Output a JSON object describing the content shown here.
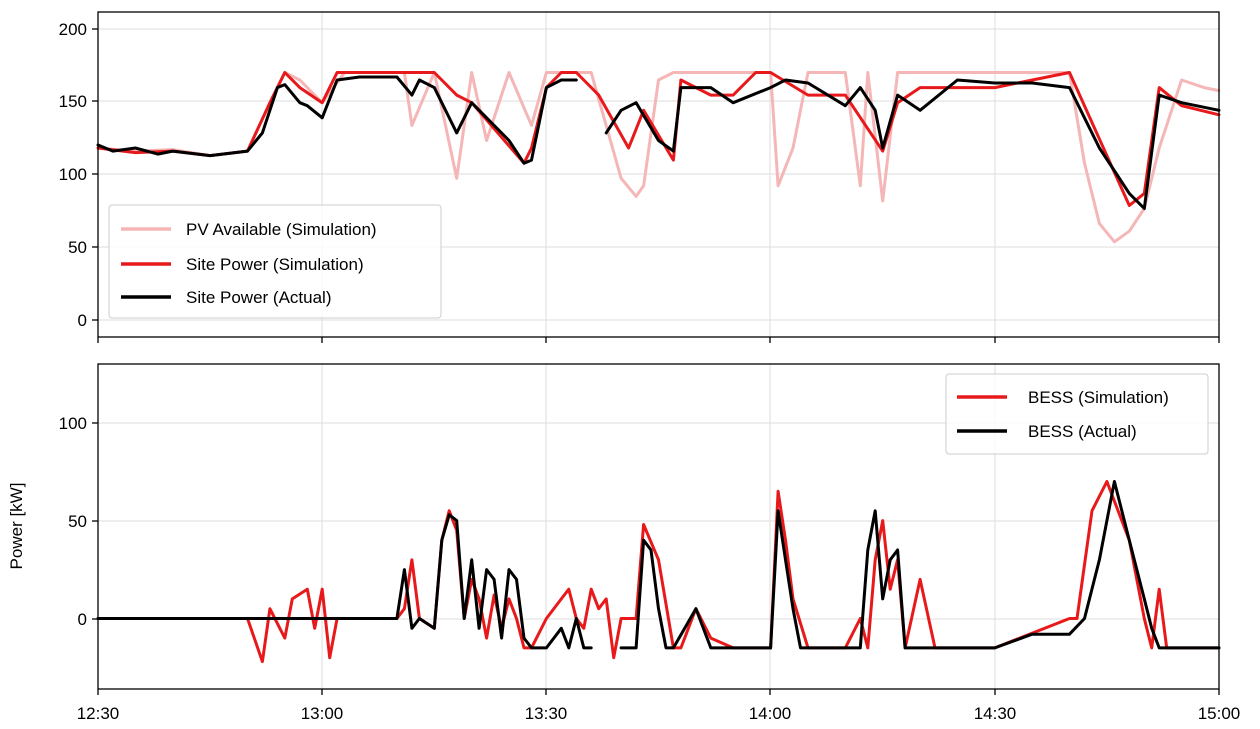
{
  "chart_data": [
    {
      "type": "line",
      "panel": "top",
      "xlabel": "",
      "ylabel": "",
      "xlim": [
        "12:30",
        "15:00"
      ],
      "ylim": [
        -5,
        210
      ],
      "xticks": [
        "12:30",
        "13:00",
        "13:30",
        "14:00",
        "14:30",
        "15:00"
      ],
      "xtick_labels_shown": false,
      "yticks": [
        0,
        50,
        100,
        150,
        200
      ],
      "ytick_labels": [
        "0",
        "50",
        "100",
        "150",
        "200"
      ],
      "grid": true,
      "legend": "bottom-left",
      "series": [
        {
          "name": "PV Available (Simulation)",
          "color": "#f4b6b6",
          "x": [
            "12:30",
            "12:35",
            "12:40",
            "12:45",
            "12:50",
            "12:53",
            "12:55",
            "12:57",
            "13:00",
            "13:03",
            "13:07",
            "13:11",
            "13:12",
            "13:15",
            "13:18",
            "13:20",
            "13:22",
            "13:25",
            "13:28",
            "13:30",
            "13:33",
            "13:36",
            "13:40",
            "13:42",
            "13:43",
            "13:45",
            "13:47",
            "13:50",
            "13:55",
            "14:00",
            "14:01",
            "14:03",
            "14:05",
            "14:10",
            "14:12",
            "14:13",
            "14:15",
            "14:17",
            "14:20",
            "14:25",
            "14:30",
            "14:35",
            "14:40",
            "14:42",
            "14:44",
            "14:46",
            "14:48",
            "14:50",
            "14:52",
            "14:55",
            "14:58",
            "15:00"
          ],
          "values": [
            120,
            118,
            119,
            115,
            118,
            150,
            170,
            165,
            150,
            170,
            170,
            170,
            135,
            170,
            100,
            170,
            125,
            170,
            135,
            170,
            170,
            170,
            100,
            88,
            95,
            165,
            170,
            170,
            170,
            170,
            95,
            120,
            170,
            170,
            95,
            170,
            85,
            170,
            170,
            170,
            170,
            170,
            170,
            110,
            70,
            58,
            65,
            80,
            120,
            165,
            160,
            158
          ]
        },
        {
          "name": "Site Power (Simulation)",
          "color": "#e8191b",
          "x": [
            "12:30",
            "12:35",
            "12:40",
            "12:45",
            "12:50",
            "12:53",
            "12:55",
            "12:57",
            "13:00",
            "13:02",
            "13:05",
            "13:10",
            "13:13",
            "13:15",
            "13:18",
            "13:20",
            "13:27",
            "13:28",
            "13:30",
            "13:32",
            "13:34",
            "13:37",
            "13:41",
            "13:43",
            "13:47",
            "13:48",
            "13:52",
            "13:55",
            "13:58",
            "14:00",
            "14:05",
            "14:10",
            "14:15",
            "14:17",
            "14:20",
            "14:30",
            "14:40",
            "14:48",
            "14:50",
            "14:52",
            "14:55",
            "15:00"
          ],
          "values": [
            120,
            117,
            118,
            115,
            118,
            150,
            170,
            160,
            150,
            170,
            170,
            170,
            170,
            170,
            155,
            150,
            110,
            120,
            160,
            170,
            170,
            155,
            120,
            145,
            112,
            165,
            155,
            155,
            170,
            170,
            155,
            155,
            118,
            150,
            160,
            160,
            170,
            82,
            90,
            160,
            148,
            142
          ]
        },
        {
          "name": "Site Power (Actual)",
          "color": "#000000",
          "x": [
            "12:30",
            "12:32",
            "12:35",
            "12:38",
            "12:40",
            "12:45",
            "12:50",
            "12:52",
            "12:54",
            "12:55",
            "12:57",
            "12:58",
            "13:00",
            "13:02",
            "13:05",
            "13:10",
            "13:12",
            "13:13",
            "13:15",
            "13:18",
            "13:20",
            "13:25",
            "13:27",
            "13:28",
            "13:30",
            "13:32",
            "13:34",
            "13:36",
            "13:37",
            "13:38",
            "13:40",
            "13:42",
            "13:45",
            "13:47",
            "13:48",
            "13:52",
            "13:55",
            "14:00",
            "14:02",
            "14:05",
            "14:10",
            "14:12",
            "14:14",
            "14:15",
            "14:17",
            "14:20",
            "14:25",
            "14:30",
            "14:35",
            "14:40",
            "14:44",
            "14:48",
            "14:50",
            "14:52",
            "14:55",
            "15:00"
          ],
          "values": [
            122,
            118,
            120,
            116,
            118,
            115,
            118,
            130,
            160,
            162,
            150,
            148,
            140,
            165,
            167,
            167,
            155,
            165,
            160,
            130,
            150,
            125,
            110,
            112,
            160,
            165,
            165,
            null,
            null,
            130,
            145,
            150,
            125,
            118,
            160,
            160,
            150,
            160,
            165,
            163,
            148,
            160,
            145,
            120,
            155,
            145,
            165,
            163,
            163,
            160,
            120,
            90,
            80,
            155,
            150,
            145
          ]
        }
      ]
    },
    {
      "type": "line",
      "panel": "bottom",
      "xlabel": "",
      "ylabel": "Power [kW]",
      "xlim": [
        "12:30",
        "15:00"
      ],
      "ylim": [
        -36,
        130
      ],
      "xticks": [
        "12:30",
        "13:00",
        "13:30",
        "14:00",
        "14:30",
        "15:00"
      ],
      "xtick_labels": [
        "12:30",
        "13:00",
        "13:30",
        "14:00",
        "14:30",
        "15:00"
      ],
      "yticks": [
        0,
        50,
        100
      ],
      "ytick_labels": [
        "0",
        "50",
        "100"
      ],
      "grid": true,
      "legend": "top-right",
      "series": [
        {
          "name": "BESS (Simulation)",
          "color": "#e8191b",
          "x": [
            "12:30",
            "12:50",
            "12:52",
            "12:53",
            "12:55",
            "12:56",
            "12:58",
            "12:59",
            "13:00",
            "13:01",
            "13:02",
            "13:10",
            "13:11",
            "13:12",
            "13:13",
            "13:15",
            "13:16",
            "13:17",
            "13:18",
            "13:19",
            "13:20",
            "13:21",
            "13:22",
            "13:23",
            "13:24",
            "13:25",
            "13:26",
            "13:27",
            "13:28",
            "13:30",
            "13:32",
            "13:33",
            "13:34",
            "13:35",
            "13:36",
            "13:37",
            "13:38",
            "13:39",
            "13:40",
            "13:42",
            "13:43",
            "13:45",
            "13:47",
            "13:48",
            "13:50",
            "13:52",
            "13:55",
            "14:00",
            "14:01",
            "14:02",
            "14:03",
            "14:05",
            "14:10",
            "14:12",
            "14:13",
            "14:14",
            "14:15",
            "14:16",
            "14:17",
            "14:18",
            "14:20",
            "14:22",
            "14:30",
            "14:40",
            "14:41",
            "14:43",
            "14:45",
            "14:48",
            "14:50",
            "14:51",
            "14:52",
            "14:53",
            "15:00"
          ],
          "values": [
            0,
            0,
            -22,
            5,
            -10,
            10,
            15,
            -5,
            15,
            -20,
            0,
            0,
            5,
            30,
            0,
            -5,
            40,
            55,
            45,
            0,
            20,
            10,
            -10,
            12,
            -5,
            10,
            0,
            -15,
            -15,
            0,
            10,
            15,
            0,
            -5,
            15,
            5,
            10,
            -20,
            0,
            0,
            48,
            30,
            -15,
            -15,
            5,
            -10,
            -15,
            -15,
            65,
            40,
            10,
            -15,
            -15,
            0,
            -15,
            30,
            50,
            15,
            30,
            -15,
            20,
            -15,
            -15,
            0,
            0,
            55,
            70,
            40,
            0,
            -15,
            15,
            -15,
            -15
          ]
        },
        {
          "name": "BESS (Actual)",
          "color": "#000000",
          "x": [
            "12:30",
            "13:10",
            "13:11",
            "13:12",
            "13:13",
            "13:15",
            "13:16",
            "13:17",
            "13:18",
            "13:19",
            "13:20",
            "13:21",
            "13:22",
            "13:23",
            "13:24",
            "13:25",
            "13:26",
            "13:27",
            "13:28",
            "13:30",
            "13:32",
            "13:33",
            "13:34",
            "13:35",
            "13:36",
            "13:37",
            "13:38",
            "13:40",
            "13:42",
            "13:43",
            "13:44",
            "13:45",
            "13:46",
            "13:47",
            "13:50",
            "13:52",
            "13:55",
            "14:00",
            "14:01",
            "14:02",
            "14:03",
            "14:04",
            "14:06",
            "14:10",
            "14:12",
            "14:13",
            "14:14",
            "14:15",
            "14:16",
            "14:17",
            "14:18",
            "14:20",
            "14:25",
            "14:30",
            "14:35",
            "14:40",
            "14:42",
            "14:44",
            "14:46",
            "14:48",
            "14:50",
            "14:51",
            "14:52",
            "14:55",
            "15:00"
          ],
          "values": [
            0,
            0,
            25,
            -5,
            0,
            -5,
            40,
            53,
            50,
            0,
            30,
            -5,
            25,
            20,
            -10,
            25,
            20,
            -10,
            -15,
            -15,
            -5,
            -15,
            0,
            -15,
            -15,
            null,
            null,
            -15,
            -15,
            40,
            35,
            5,
            -15,
            -15,
            5,
            -15,
            -15,
            -15,
            55,
            30,
            5,
            -15,
            -15,
            -15,
            -15,
            35,
            55,
            10,
            30,
            35,
            -15,
            -15,
            -15,
            -15,
            -8,
            -8,
            0,
            30,
            70,
            40,
            10,
            -5,
            -15,
            -15,
            -15
          ]
        }
      ]
    }
  ]
}
